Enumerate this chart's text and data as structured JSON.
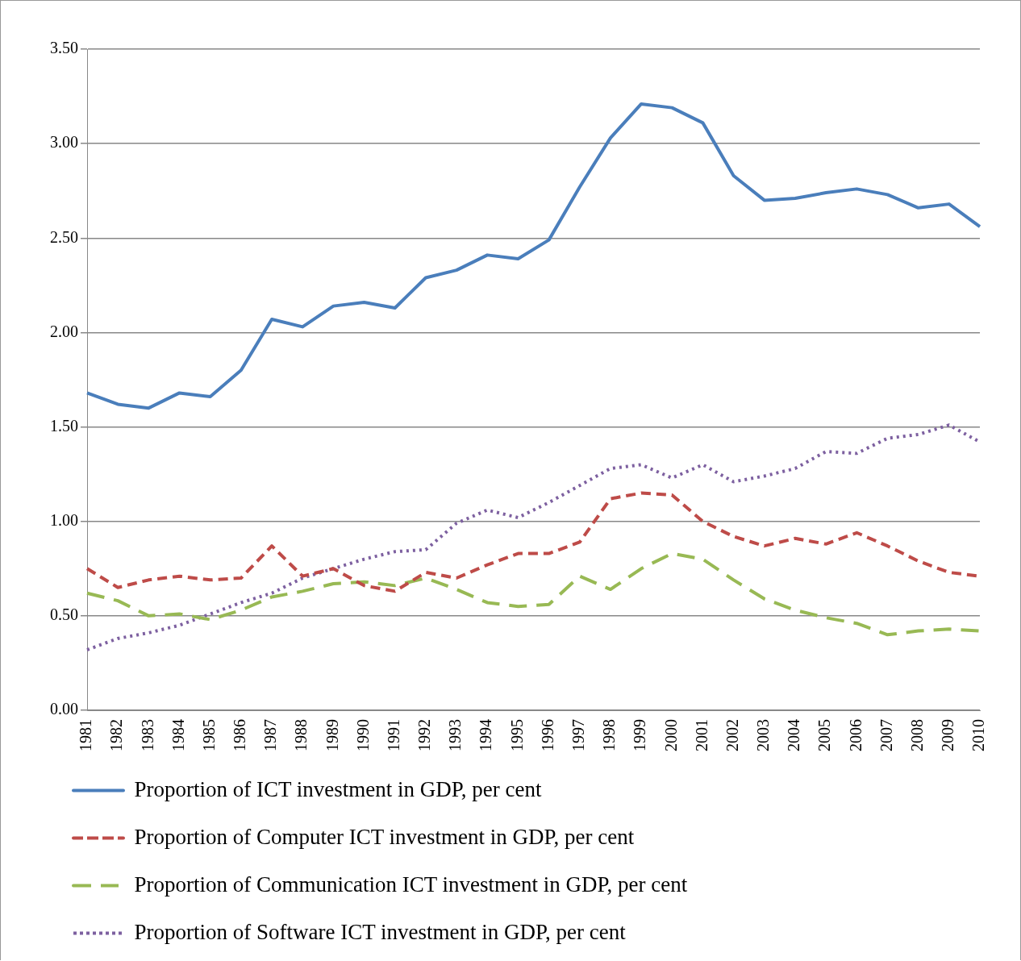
{
  "chart_data": {
    "type": "line",
    "categories": [
      "1981",
      "1982",
      "1983",
      "1984",
      "1985",
      "1986",
      "1987",
      "1988",
      "1989",
      "1990",
      "1991",
      "1992",
      "1993",
      "1994",
      "1995",
      "1996",
      "1997",
      "1998",
      "1999",
      "2000",
      "2001",
      "2002",
      "2003",
      "2004",
      "2005",
      "2006",
      "2007",
      "2008",
      "2009",
      "2010"
    ],
    "series": [
      {
        "name": "Proportion of ICT investment in GDP, per cent",
        "color": "#4a7ebb",
        "line_style": "solid",
        "values": [
          1.68,
          1.62,
          1.6,
          1.68,
          1.66,
          1.8,
          2.07,
          2.03,
          2.14,
          2.16,
          2.13,
          2.29,
          2.33,
          2.41,
          2.39,
          2.49,
          2.77,
          3.03,
          3.21,
          3.19,
          3.11,
          2.83,
          2.7,
          2.71,
          2.74,
          2.76,
          2.73,
          2.66,
          2.68,
          2.56
        ]
      },
      {
        "name": "Proportion of Computer ICT investment in GDP, per cent",
        "color": "#be4b48",
        "line_style": "dashed",
        "values": [
          0.75,
          0.65,
          0.69,
          0.71,
          0.69,
          0.7,
          0.87,
          0.71,
          0.75,
          0.66,
          0.63,
          0.73,
          0.7,
          0.77,
          0.83,
          0.83,
          0.89,
          1.12,
          1.15,
          1.14,
          1.0,
          0.92,
          0.87,
          0.91,
          0.88,
          0.94,
          0.87,
          0.79,
          0.73,
          0.71
        ]
      },
      {
        "name": "Proportion of Communication ICT investment in GDP, per cent",
        "color": "#98b954",
        "line_style": "longdash",
        "values": [
          0.62,
          0.58,
          0.5,
          0.51,
          0.48,
          0.53,
          0.6,
          0.63,
          0.67,
          0.68,
          0.66,
          0.7,
          0.64,
          0.57,
          0.55,
          0.56,
          0.71,
          0.64,
          0.75,
          0.83,
          0.8,
          0.69,
          0.59,
          0.53,
          0.49,
          0.46,
          0.4,
          0.42,
          0.43,
          0.42
        ]
      },
      {
        "name": "Proportion of Software ICT investment in GDP, per cent",
        "color": "#7d60a0",
        "line_style": "dotted",
        "values": [
          0.32,
          0.38,
          0.41,
          0.45,
          0.51,
          0.57,
          0.62,
          0.7,
          0.75,
          0.8,
          0.84,
          0.85,
          0.99,
          1.06,
          1.02,
          1.1,
          1.19,
          1.28,
          1.3,
          1.23,
          1.3,
          1.21,
          1.24,
          1.28,
          1.37,
          1.36,
          1.44,
          1.46,
          1.51,
          1.42
        ]
      }
    ],
    "ylim": [
      0,
      3.5
    ],
    "yticks": [
      {
        "value": 0,
        "label": "0.00"
      },
      {
        "value": 0.5,
        "label": "0.50"
      },
      {
        "value": 1,
        "label": "1.00"
      },
      {
        "value": 1.5,
        "label": "1.50"
      },
      {
        "value": 2,
        "label": "2.00"
      },
      {
        "value": 2.5,
        "label": "2.50"
      },
      {
        "value": 3,
        "label": "3.00"
      },
      {
        "value": 3.5,
        "label": "3.50"
      }
    ],
    "grid": "y",
    "legend": "bottom",
    "marker": "none"
  }
}
